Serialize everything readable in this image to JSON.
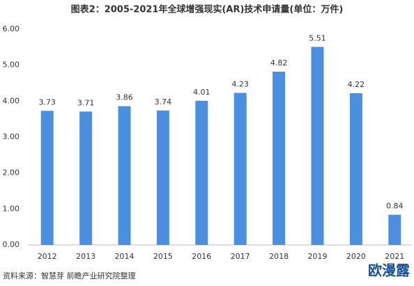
{
  "chart_data": {
    "type": "bar",
    "title": "图表2：2005-2021年全球增强现实(AR)技术申请量(单位：万件)",
    "categories": [
      "2012",
      "2013",
      "2014",
      "2015",
      "2016",
      "2017",
      "2018",
      "2019",
      "2020",
      "2021"
    ],
    "values": [
      3.73,
      3.71,
      3.86,
      3.74,
      4.01,
      4.23,
      4.82,
      5.51,
      4.22,
      0.84
    ],
    "color": "#4a8fe0",
    "ylim": [
      0,
      6
    ],
    "yticks": [
      {
        "value": 0,
        "label": "0.00"
      },
      {
        "value": 1,
        "label": "1.00"
      },
      {
        "value": 2,
        "label": "2.00"
      },
      {
        "value": 3,
        "label": "3.00"
      },
      {
        "value": 4,
        "label": "4.00"
      },
      {
        "value": 5,
        "label": "5.00"
      },
      {
        "value": 6,
        "label": "6.00"
      }
    ],
    "grid": false,
    "source": "资料来源：智慧芽 前瞻产业研究院整理",
    "watermark": "欧漫露"
  }
}
